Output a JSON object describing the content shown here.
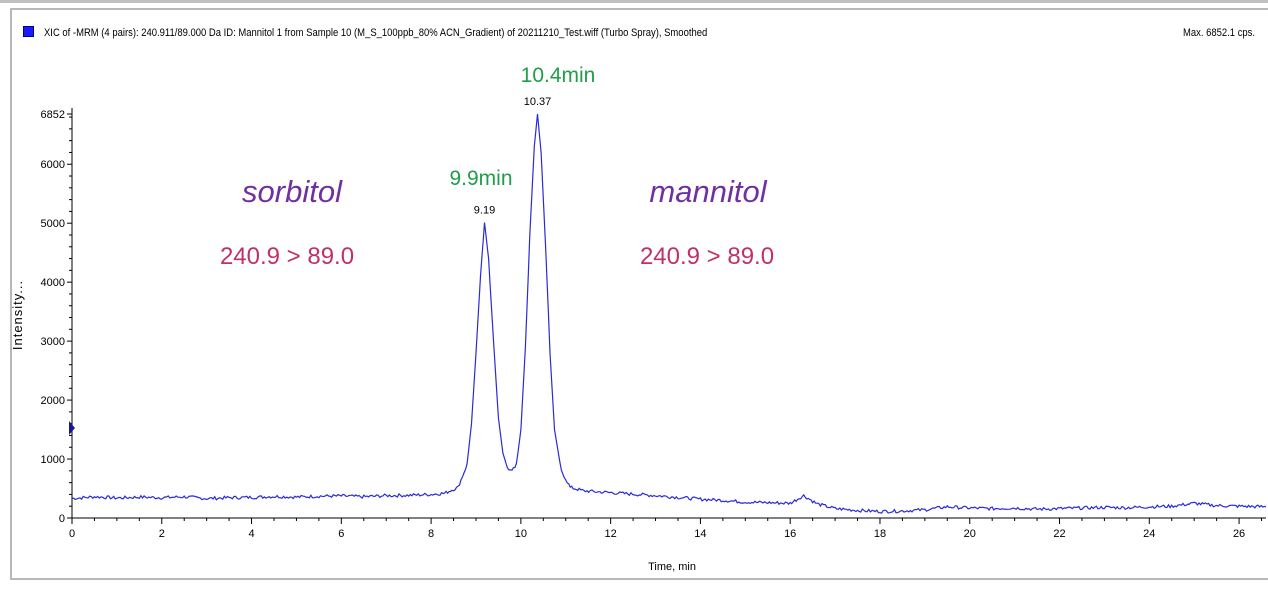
{
  "header": {
    "title": "XIC of -MRM (4 pairs): 240.911/89.000 Da ID: Mannitol 1 from Sample 10 (M_S_100ppb_80% ACN_Gradient) of 20211210_Test.wiff (Turbo Spray), Smoothed",
    "max_label": "Max. 6852.1 cps.",
    "marker_color": "#1a1aff"
  },
  "annotations": {
    "sorbitol_name": "sorbitol",
    "sorbitol_transition": "240.9 > 89.0",
    "sorbitol_time": "9.9min",
    "mannitol_name": "mannitol",
    "mannitol_transition": "240.9 > 89.0",
    "mannitol_time": "10.4min",
    "name_color": "#7030a0",
    "transition_color": "#c0306a",
    "time_color": "#1f9e4a"
  },
  "chart_data": {
    "type": "line",
    "title": "XIC of -MRM (4 pairs): 240.911/89.000 Da ID: Mannitol 1 from Sample 10 (M_S_100ppb_80% ACN_Gradient) of 20211210_Test.wiff (Turbo Spray), Smoothed",
    "xlabel": "Time, min",
    "ylabel": "Intensity...",
    "xlim": [
      0,
      26.6
    ],
    "ylim": [
      0,
      6852
    ],
    "x_ticks": [
      0,
      2,
      4,
      6,
      8,
      10,
      12,
      14,
      16,
      18,
      20,
      22,
      24,
      26
    ],
    "y_ticks": [
      0,
      1000,
      2000,
      3000,
      4000,
      5000,
      6000,
      6852
    ],
    "line_color": "#2a2ad8",
    "peak_labels": [
      {
        "x": 9.19,
        "y": 5010,
        "label": "9.19"
      },
      {
        "x": 10.37,
        "y": 6852,
        "label": "10.37"
      }
    ],
    "series": [
      {
        "x": [
          0,
          0.5,
          1,
          1.5,
          2,
          2.5,
          3,
          3.5,
          4,
          4.5,
          5,
          5.5,
          6,
          6.5,
          7,
          7.5,
          8,
          8.3,
          8.6,
          8.8,
          8.9,
          9.0,
          9.1,
          9.19,
          9.28,
          9.4,
          9.5,
          9.6,
          9.7,
          9.8,
          9.9,
          10.0,
          10.1,
          10.2,
          10.3,
          10.37,
          10.45,
          10.55,
          10.65,
          10.75,
          10.9,
          11.1,
          11.4,
          11.8,
          12.2,
          12.6,
          13,
          13.5,
          14,
          14.5,
          15,
          15.5,
          16,
          16.3,
          16.6,
          17,
          17.5,
          18,
          18.5,
          19,
          19.5,
          20,
          20.5,
          21,
          21.5,
          22,
          22.5,
          23,
          23.5,
          24,
          24.5,
          25,
          25.5,
          26,
          26.6
        ],
        "y": [
          330,
          360,
          340,
          355,
          345,
          360,
          330,
          345,
          350,
          365,
          355,
          370,
          375,
          360,
          380,
          385,
          400,
          420,
          520,
          900,
          1600,
          2800,
          4100,
          5010,
          4400,
          2900,
          1700,
          1100,
          850,
          790,
          900,
          1500,
          2900,
          4800,
          6300,
          6852,
          6200,
          4600,
          2800,
          1500,
          800,
          520,
          460,
          440,
          420,
          400,
          380,
          350,
          320,
          300,
          270,
          260,
          250,
          380,
          240,
          160,
          130,
          110,
          120,
          140,
          190,
          170,
          160,
          170,
          150,
          160,
          170,
          180,
          175,
          190,
          200,
          250,
          210,
          200,
          190
        ]
      }
    ]
  }
}
